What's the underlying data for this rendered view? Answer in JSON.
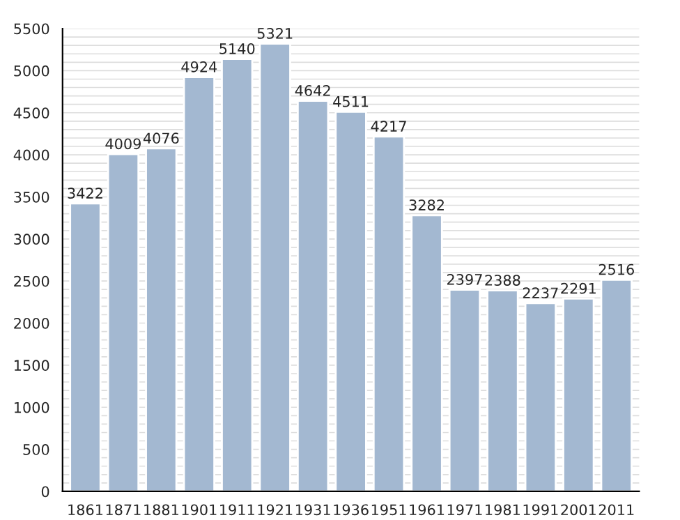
{
  "chart_data": {
    "type": "bar",
    "categories": [
      "1861",
      "1871",
      "1881",
      "1901",
      "1911",
      "1921",
      "1931",
      "1936",
      "1951",
      "1961",
      "1971",
      "1981",
      "1991",
      "2001",
      "2011"
    ],
    "values": [
      3422,
      4009,
      4076,
      4924,
      5140,
      5321,
      4642,
      4511,
      4217,
      3282,
      2397,
      2388,
      2237,
      2291,
      2516
    ],
    "color": "#a3b8d1",
    "data_labels": true,
    "ylim": [
      0,
      5500
    ],
    "yticks": [
      0,
      {
        "value": 100,
        "label": null
      },
      {
        "value": 200,
        "label": null
      },
      {
        "value": 300,
        "label": null
      },
      {
        "value": 400,
        "label": null
      },
      500,
      {
        "value": 600,
        "label": null
      },
      {
        "value": 700,
        "label": null
      },
      {
        "value": 800,
        "label": null
      },
      {
        "value": 900,
        "label": null
      },
      1000,
      {
        "value": 1100,
        "label": null
      },
      {
        "value": 1200,
        "label": null
      },
      {
        "value": 1300,
        "label": null
      },
      {
        "value": 1400,
        "label": null
      },
      1500,
      {
        "value": 1600,
        "label": null
      },
      {
        "value": 1700,
        "label": null
      },
      {
        "value": 1800,
        "label": null
      },
      {
        "value": 1900,
        "label": null
      },
      2000,
      {
        "value": 2100,
        "label": null
      },
      {
        "value": 2200,
        "label": null
      },
      {
        "value": 2300,
        "label": null
      },
      {
        "value": 2400,
        "label": null
      },
      2500,
      {
        "value": 2600,
        "label": null
      },
      {
        "value": 2700,
        "label": null
      },
      {
        "value": 2800,
        "label": null
      },
      {
        "value": 2900,
        "label": null
      },
      3000,
      {
        "value": 3100,
        "label": null
      },
      {
        "value": 3200,
        "label": null
      },
      {
        "value": 3300,
        "label": null
      },
      {
        "value": 3400,
        "label": null
      },
      3500,
      {
        "value": 3600,
        "label": null
      },
      {
        "value": 3700,
        "label": null
      },
      {
        "value": 3800,
        "label": null
      },
      {
        "value": 3900,
        "label": null
      },
      4000,
      {
        "value": 4100,
        "label": null
      },
      {
        "value": 4200,
        "label": null
      },
      {
        "value": 4300,
        "label": null
      },
      {
        "value": 4400,
        "label": null
      },
      4500,
      {
        "value": 4600,
        "label": null
      },
      {
        "value": 4700,
        "label": null
      },
      {
        "value": 4800,
        "label": null
      },
      {
        "value": 4900,
        "label": null
      },
      5000,
      {
        "value": 5100,
        "label": null
      },
      {
        "value": 5200,
        "label": null
      },
      {
        "value": 5300,
        "label": null
      },
      {
        "value": 5400,
        "label": null
      },
      5500
    ],
    "grid": "y"
  }
}
